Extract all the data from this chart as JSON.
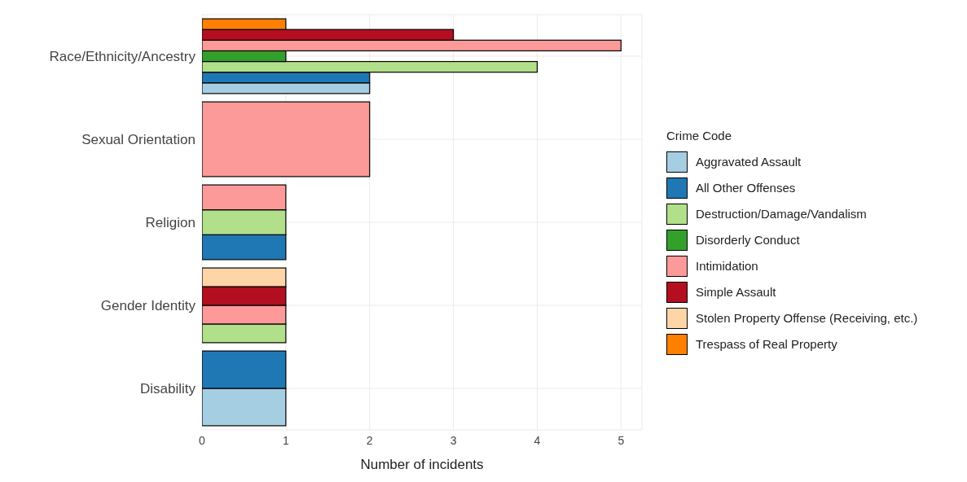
{
  "chart_data": {
    "type": "bar",
    "orientation": "horizontal",
    "xlabel": "Number of incidents",
    "legend_title": "Crime Code",
    "legend": "right",
    "grid": true,
    "categories": [
      "Race/Ethnicity/Ancestry",
      "Sexual Orientation",
      "Religion",
      "Gender Identity",
      "Disability"
    ],
    "xlim": [
      0,
      5.25
    ],
    "xticks": [
      0,
      1,
      2,
      3,
      4,
      5
    ],
    "series": [
      {
        "name": "Aggravated Assault",
        "color": "#a6cee3",
        "values": [
          2,
          null,
          null,
          null,
          1
        ]
      },
      {
        "name": "All Other Offenses",
        "color": "#1f78b4",
        "values": [
          2,
          null,
          1,
          null,
          1
        ]
      },
      {
        "name": "Destruction/Damage/Vandalism",
        "color": "#b2df8a",
        "values": [
          4,
          null,
          1,
          1,
          null
        ]
      },
      {
        "name": "Disorderly Conduct",
        "color": "#33a02c",
        "values": [
          1,
          null,
          null,
          null,
          null
        ]
      },
      {
        "name": "Intimidation",
        "color": "#fb9a99",
        "values": [
          5,
          2,
          1,
          1,
          null
        ]
      },
      {
        "name": "Simple Assault",
        "color": "#b30f20",
        "values": [
          3,
          null,
          null,
          1,
          null
        ]
      },
      {
        "name": "Stolen Property Offense (Receiving, etc.)",
        "color": "#fdd5a6",
        "values": [
          null,
          null,
          null,
          1,
          null
        ]
      },
      {
        "name": "Trespass of Real Property",
        "color": "#ff7f00",
        "values": [
          1,
          null,
          null,
          null,
          null
        ]
      }
    ]
  }
}
